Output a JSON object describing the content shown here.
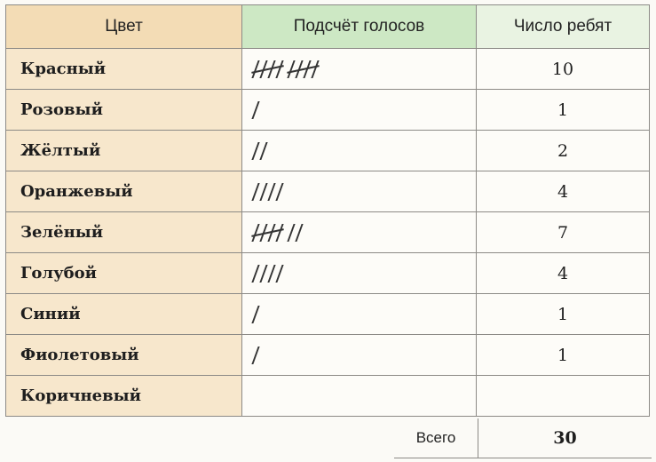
{
  "headers": {
    "color": "Цвет",
    "tally": "Подсчёт голосов",
    "count": "Число ребят"
  },
  "rows": [
    {
      "color": "Красный",
      "count": "10"
    },
    {
      "color": "Розовый",
      "count": "1"
    },
    {
      "color": "Жёлтый",
      "count": "2"
    },
    {
      "color": "Оранжевый",
      "count": "4"
    },
    {
      "color": "Зелёный",
      "count": "7"
    },
    {
      "color": "Голубой",
      "count": "4"
    },
    {
      "color": "Синий",
      "count": "1"
    },
    {
      "color": "Фиолетовый",
      "count": "1"
    },
    {
      "color": "Коричневый",
      "count": ""
    }
  ],
  "total": {
    "label": "Всего",
    "value": "30"
  },
  "colors": {
    "header_color_bg": "#f3dcb5",
    "header_tally_bg": "#cde8c4",
    "header_count_bg": "#e9f3e2",
    "name_cell_bg": "#f7e7cc",
    "border": "#8c8a86"
  }
}
